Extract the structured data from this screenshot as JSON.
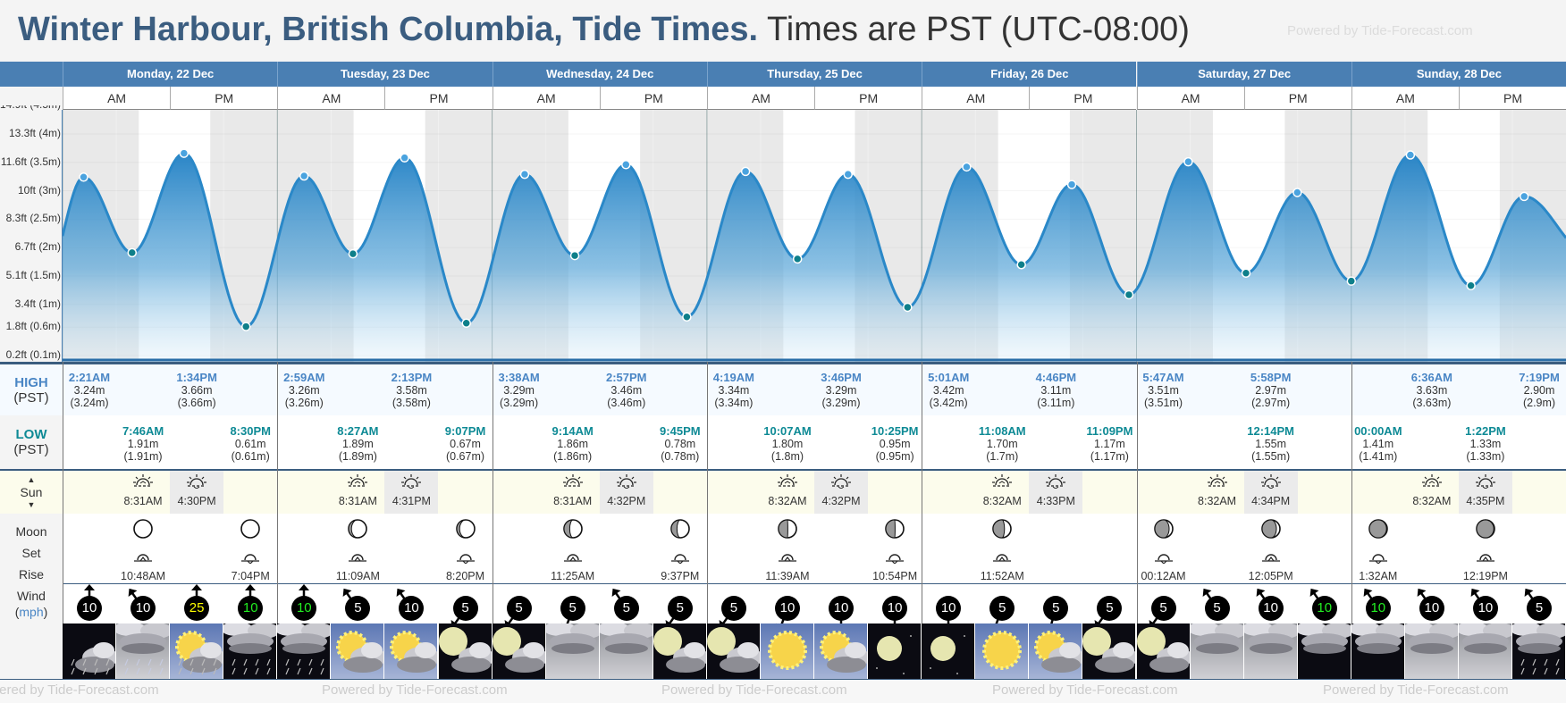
{
  "header": {
    "location": "Winter Harbour, British Columbia, Tide Times.",
    "timezone": "Times are PST (UTC-08:00)",
    "powered": "Powered by Tide-Forecast.com"
  },
  "labels": {
    "high": "HIGH",
    "low": "LOW",
    "pst": "(PST)",
    "sun": "Sun",
    "moon": "Moon",
    "set": "Set",
    "rise": "Rise",
    "wind": "Wind",
    "mph": "mph",
    "up": "▲",
    "down": "▼"
  },
  "yaxis": [
    {
      "m": 4.5,
      "label": "14.9ft (4.5m)"
    },
    {
      "m": 4,
      "label": "13.3ft (4m)"
    },
    {
      "m": 3.5,
      "label": "11.6ft (3.5m)"
    },
    {
      "m": 3,
      "label": "10ft (3m)"
    },
    {
      "m": 2.5,
      "label": "8.3ft (2.5m)"
    },
    {
      "m": 2,
      "label": "6.7ft (2m)"
    },
    {
      "m": 1.5,
      "label": "5.1ft (1.5m)"
    },
    {
      "m": 1,
      "label": "3.4ft (1m)"
    },
    {
      "m": 0.6,
      "label": "1.8ft (0.6m)"
    },
    {
      "m": 0.1,
      "label": "0.2ft (0.1m)"
    }
  ],
  "colors": {
    "header": "#4a7fb3",
    "high": "#4a86c5",
    "low": "#0e8a95",
    "night": "#e9e9e9"
  },
  "days": [
    {
      "label": "Monday, 22 Dec",
      "am": "AM",
      "pm": "PM",
      "slots": [
        {
          "high": {
            "time": "2:21AM",
            "m": "3.24m",
            "alt": "(3.24m)",
            "v": 3.24
          },
          "wind": {
            "speed": "10",
            "dir": 0,
            "color": "#fff"
          },
          "weather": "night-cloud-rain"
        },
        {
          "low": {
            "time": "7:46AM",
            "m": "1.91m",
            "alt": "(1.91m)",
            "v": 1.91
          },
          "sun": {
            "type": "sunrise",
            "time": "8:31AM"
          },
          "moon": {
            "type": "moonrise",
            "time": "10:48AM"
          },
          "wind": {
            "speed": "10",
            "dir": -35,
            "color": "#fff"
          },
          "weather": "heavy-rain"
        },
        {
          "high": {
            "time": "1:34PM",
            "m": "3.66m",
            "alt": "(3.66m)",
            "v": 3.66
          },
          "sun": {
            "type": "sunset",
            "time": "4:30PM"
          },
          "wind": {
            "speed": "25",
            "dir": 0,
            "color": "#ffff00"
          },
          "weather": "day-sun-cloud-rain"
        },
        {
          "low": {
            "time": "8:30PM",
            "m": "0.61m",
            "alt": "(0.61m)",
            "v": 0.61
          },
          "moon": {
            "type": "moonset",
            "time": "7:04PM"
          },
          "wind": {
            "speed": "10",
            "dir": 0,
            "color": "#22ee22"
          },
          "weather": "night-rain"
        }
      ]
    },
    {
      "label": "Tuesday, 23 Dec",
      "am": "AM",
      "pm": "PM",
      "slots": [
        {
          "high": {
            "time": "2:59AM",
            "m": "3.26m",
            "alt": "(3.26m)",
            "v": 3.26
          },
          "wind": {
            "speed": "10",
            "dir": 0,
            "color": "#22ee22"
          },
          "weather": "night-rain"
        },
        {
          "low": {
            "time": "8:27AM",
            "m": "1.89m",
            "alt": "(1.89m)",
            "v": 1.89
          },
          "sun": {
            "type": "sunrise",
            "time": "8:31AM"
          },
          "moon": {
            "type": "moonrise",
            "time": "11:09AM"
          },
          "wind": {
            "speed": "5",
            "dir": -35,
            "color": "#fff"
          },
          "weather": "day-sun-cloud"
        },
        {
          "high": {
            "time": "2:13PM",
            "m": "3.58m",
            "alt": "(3.58m)",
            "v": 3.58
          },
          "sun": {
            "type": "sunset",
            "time": "4:31PM"
          },
          "wind": {
            "speed": "10",
            "dir": -35,
            "color": "#fff"
          },
          "weather": "day-sun-cloud"
        },
        {
          "low": {
            "time": "9:07PM",
            "m": "0.67m",
            "alt": "(0.67m)",
            "v": 0.67
          },
          "moon": {
            "type": "moonset",
            "time": "8:20PM"
          },
          "wind": {
            "speed": "5",
            "dir": 215,
            "color": "#fff"
          },
          "weather": "night-moon-cloud"
        }
      ]
    },
    {
      "label": "Wednesday, 24 Dec",
      "am": "AM",
      "pm": "PM",
      "slots": [
        {
          "high": {
            "time": "3:38AM",
            "m": "3.29m",
            "alt": "(3.29m)",
            "v": 3.29
          },
          "wind": {
            "speed": "5",
            "dir": 215,
            "color": "#fff"
          },
          "weather": "night-moon-cloud"
        },
        {
          "low": {
            "time": "9:14AM",
            "m": "1.86m",
            "alt": "(1.86m)",
            "v": 1.86
          },
          "sun": {
            "type": "sunrise",
            "time": "8:31AM"
          },
          "moon": {
            "type": "moonrise",
            "time": "11:25AM"
          },
          "wind": {
            "speed": "5",
            "dir": 200,
            "color": "#fff"
          },
          "weather": "overcast"
        },
        {
          "high": {
            "time": "2:57PM",
            "m": "3.46m",
            "alt": "(3.46m)",
            "v": 3.46
          },
          "sun": {
            "type": "sunset",
            "time": "4:32PM"
          },
          "wind": {
            "speed": "5",
            "dir": -35,
            "color": "#fff"
          },
          "weather": "overcast"
        },
        {
          "low": {
            "time": "9:45PM",
            "m": "0.78m",
            "alt": "(0.78m)",
            "v": 0.78
          },
          "moon": {
            "type": "moonset",
            "time": "9:37PM"
          },
          "wind": {
            "speed": "5",
            "dir": 215,
            "color": "#fff"
          },
          "weather": "night-moon-cloud"
        }
      ]
    },
    {
      "label": "Thursday, 25 Dec",
      "am": "AM",
      "pm": "PM",
      "slots": [
        {
          "high": {
            "time": "4:19AM",
            "m": "3.34m",
            "alt": "(3.34m)",
            "v": 3.34
          },
          "wind": {
            "speed": "5",
            "dir": 215,
            "color": "#fff"
          },
          "weather": "night-moon-cloud"
        },
        {
          "low": {
            "time": "10:07AM",
            "m": "1.80m",
            "alt": "(1.8m)",
            "v": 1.8
          },
          "sun": {
            "type": "sunrise",
            "time": "8:32AM"
          },
          "moon": {
            "type": "moonrise",
            "time": "11:39AM"
          },
          "wind": {
            "speed": "10",
            "dir": 200,
            "color": "#fff"
          },
          "weather": "day-sun"
        },
        {
          "high": {
            "time": "3:46PM",
            "m": "3.29m",
            "alt": "(3.29m)",
            "v": 3.29
          },
          "sun": {
            "type": "sunset",
            "time": "4:32PM"
          },
          "wind": {
            "speed": "10",
            "dir": 180,
            "color": "#fff"
          },
          "weather": "day-sun-cloud"
        },
        {
          "low": {
            "time": "10:25PM",
            "m": "0.95m",
            "alt": "(0.95m)",
            "v": 0.95
          },
          "moon": {
            "type": "moonset",
            "time": "10:54PM"
          },
          "wind": {
            "speed": "10",
            "dir": 180,
            "color": "#fff"
          },
          "weather": "night-moon"
        }
      ]
    },
    {
      "label": "Friday, 26 Dec",
      "am": "AM",
      "pm": "PM",
      "slots": [
        {
          "high": {
            "time": "5:01AM",
            "m": "3.42m",
            "alt": "(3.42m)",
            "v": 3.42
          },
          "wind": {
            "speed": "10",
            "dir": 180,
            "color": "#fff"
          },
          "weather": "night-moon"
        },
        {
          "low": {
            "time": "11:08AM",
            "m": "1.70m",
            "alt": "(1.7m)",
            "v": 1.7
          },
          "sun": {
            "type": "sunrise",
            "time": "8:32AM"
          },
          "moon": {
            "type": "moonrise",
            "time": "11:52AM"
          },
          "wind": {
            "speed": "5",
            "dir": 200,
            "color": "#fff"
          },
          "weather": "day-sun"
        },
        {
          "high": {
            "time": "4:46PM",
            "m": "3.11m",
            "alt": "(3.11m)",
            "v": 3.11
          },
          "sun": {
            "type": "sunset",
            "time": "4:33PM"
          },
          "wind": {
            "speed": "5",
            "dir": 195,
            "color": "#fff"
          },
          "weather": "day-sun-cloud"
        },
        {
          "low": {
            "time": "11:09PM",
            "m": "1.17m",
            "alt": "(1.17m)",
            "v": 1.17
          },
          "wind": {
            "speed": "5",
            "dir": 215,
            "color": "#fff"
          },
          "weather": "night-moon-cloud"
        }
      ]
    },
    {
      "label": "Saturday, 27 Dec",
      "am": "AM",
      "pm": "PM",
      "slots": [
        {
          "high": {
            "time": "5:47AM",
            "m": "3.51m",
            "alt": "(3.51m)",
            "v": 3.51
          },
          "moon": {
            "type": "moonset",
            "time": "00:12AM"
          },
          "wind": {
            "speed": "5",
            "dir": 215,
            "color": "#fff"
          },
          "weather": "night-moon-cloud"
        },
        {
          "sun": {
            "type": "sunrise",
            "time": "8:32AM"
          },
          "wind": {
            "speed": "5",
            "dir": -35,
            "color": "#fff"
          },
          "weather": "overcast"
        },
        {
          "high": {
            "time": "5:58PM",
            "m": "2.97m",
            "alt": "(2.97m)",
            "v": 2.97
          },
          "low": {
            "time": "12:14PM",
            "m": "1.55m",
            "alt": "(1.55m)",
            "v": 1.55
          },
          "sun": {
            "type": "sunset",
            "time": "4:34PM"
          },
          "moon": {
            "type": "moonrise",
            "time": "12:05PM"
          },
          "wind": {
            "speed": "10",
            "dir": -35,
            "color": "#fff"
          },
          "weather": "overcast"
        },
        {
          "wind": {
            "speed": "10",
            "dir": -35,
            "color": "#22ee22"
          },
          "weather": "night-overcast"
        }
      ]
    },
    {
      "label": "Sunday, 28 Dec",
      "am": "AM",
      "pm": "PM",
      "slots": [
        {
          "low": {
            "time": "00:00AM",
            "m": "1.41m",
            "alt": "(1.41m)",
            "v": 1.41
          },
          "moon": {
            "type": "moonset",
            "time": "1:32AM"
          },
          "wind": {
            "speed": "10",
            "dir": -35,
            "color": "#22ee22"
          },
          "weather": "night-overcast"
        },
        {
          "high": {
            "time": "6:36AM",
            "m": "3.63m",
            "alt": "(3.63m)",
            "v": 3.63
          },
          "sun": {
            "type": "sunrise",
            "time": "8:32AM"
          },
          "wind": {
            "speed": "10",
            "dir": -35,
            "color": "#fff"
          },
          "weather": "overcast"
        },
        {
          "low": {
            "time": "1:22PM",
            "m": "1.33m",
            "alt": "(1.33m)",
            "v": 1.33
          },
          "sun": {
            "type": "sunset",
            "time": "4:35PM"
          },
          "moon": {
            "type": "moonrise",
            "time": "12:19PM"
          },
          "wind": {
            "speed": "10",
            "dir": -35,
            "color": "#fff"
          },
          "weather": "overcast"
        },
        {
          "high": {
            "time": "7:19PM",
            "m": "2.90m",
            "alt": "(2.9m)",
            "v": 2.9
          },
          "wind": {
            "speed": "5",
            "dir": -35,
            "color": "#fff"
          },
          "weather": "night-rain"
        }
      ]
    }
  ]
}
